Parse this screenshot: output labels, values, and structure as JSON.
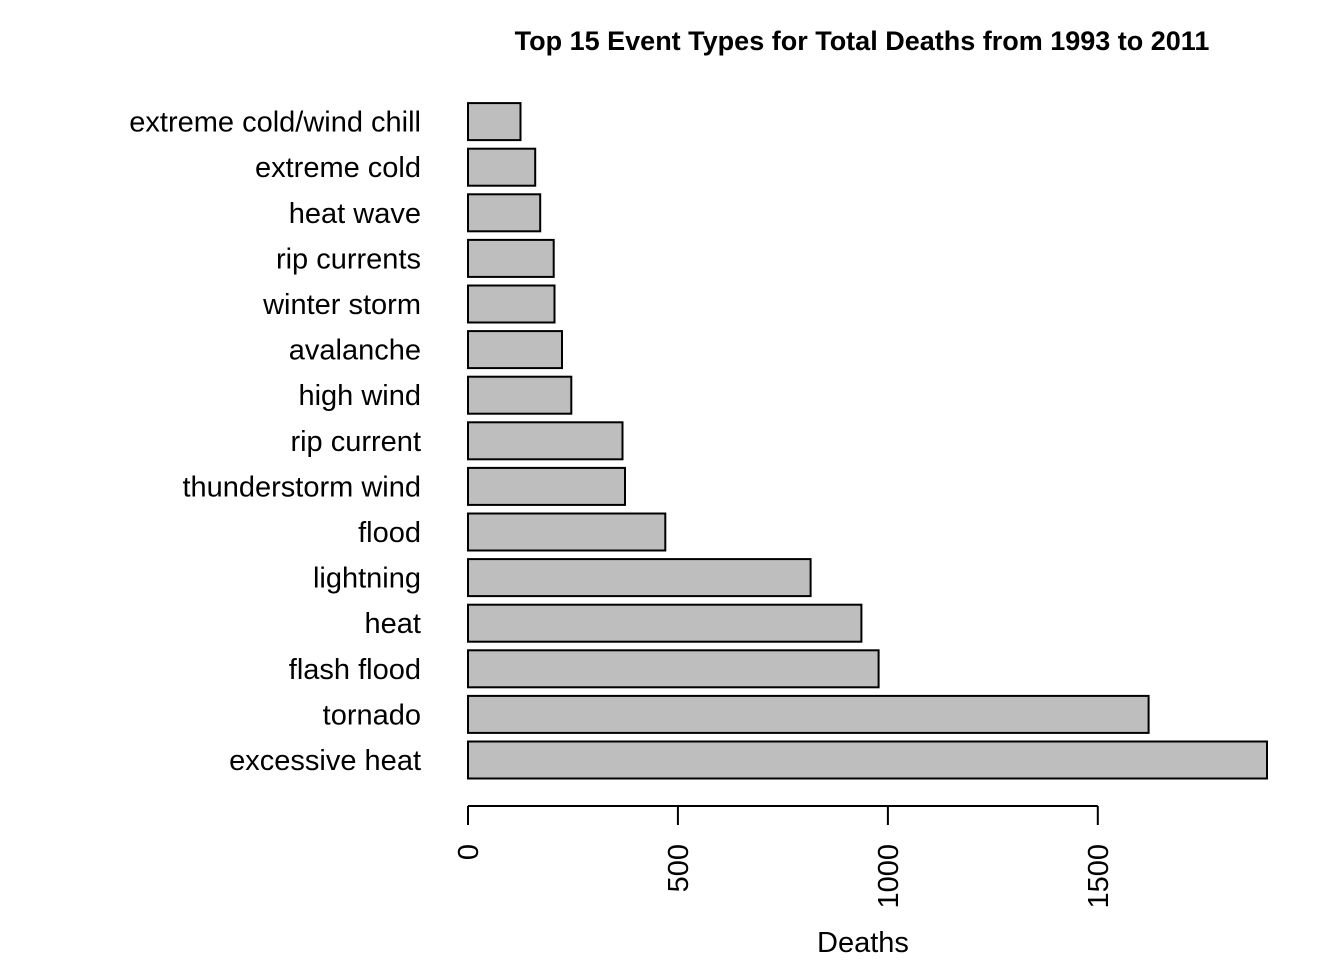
{
  "chart_data": {
    "type": "bar",
    "orientation": "horizontal",
    "title": "Top 15 Event Types for Total Deaths from 1993 to 2011",
    "xlabel": "Deaths",
    "ylabel": "",
    "categories": [
      "excessive heat",
      "tornado",
      "flash flood",
      "heat",
      "lightning",
      "flood",
      "thunderstorm wind",
      "rip current",
      "high wind",
      "avalanche",
      "winter storm",
      "rip currents",
      "heat wave",
      "extreme cold",
      "extreme cold/wind chill"
    ],
    "values": [
      1903,
      1621,
      978,
      937,
      816,
      470,
      374,
      368,
      246,
      224,
      206,
      204,
      172,
      160,
      125
    ],
    "xlim": [
      0,
      1903
    ],
    "xticks": [
      0,
      500,
      1000,
      1500
    ],
    "tick_labels": [
      "0",
      "500",
      "1000",
      "1500"
    ],
    "bar_color": "#bebebe",
    "grid": false,
    "legend": "none"
  }
}
